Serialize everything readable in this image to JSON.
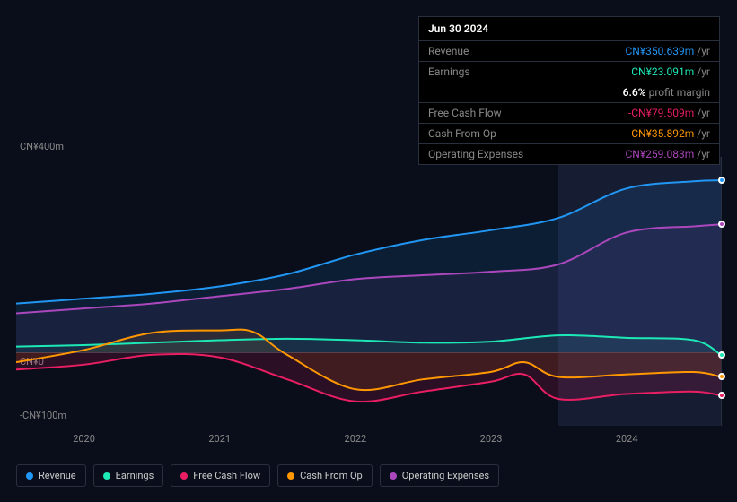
{
  "tooltip": {
    "date": "Jun 30 2024",
    "rows": [
      {
        "label": "Revenue",
        "value": "CN¥350.639m",
        "unit": "/yr",
        "color": "#2196f3"
      },
      {
        "label": "Earnings",
        "value": "CN¥23.091m",
        "unit": "/yr",
        "color": "#1de9b6"
      },
      {
        "label": "",
        "value": "",
        "unit": "",
        "margin_pct": "6.6%",
        "margin_text": "profit margin"
      },
      {
        "label": "Free Cash Flow",
        "value": "-CN¥79.509m",
        "unit": "/yr",
        "color": "#e91e63"
      },
      {
        "label": "Cash From Op",
        "value": "-CN¥35.892m",
        "unit": "/yr",
        "color": "#ff9800"
      },
      {
        "label": "Operating Expenses",
        "value": "CN¥259.083m",
        "unit": "/yr",
        "color": "#ab47bc"
      }
    ]
  },
  "chart": {
    "type": "line",
    "x_axis": {
      "labels": [
        "2020",
        "2021",
        "2022",
        "2023",
        "2024"
      ],
      "min": 2019.5,
      "max": 2024.7,
      "future_start": 2023.5
    },
    "y_axis": {
      "ticks": [
        {
          "value": 400,
          "label": "CN¥400m"
        },
        {
          "value": 0,
          "label": "CN¥0"
        },
        {
          "value": -100,
          "label": "-CN¥100m"
        }
      ],
      "min": -150,
      "max": 400
    },
    "background": "#0a0e1a",
    "grid_color": "#3a3f4e",
    "future_bg": "rgba(60,70,120,0.25)",
    "series": [
      {
        "name": "Revenue",
        "color": "#2196f3",
        "fill": "rgba(33,150,243,0.12)",
        "width": 2,
        "points": [
          [
            2019.5,
            100
          ],
          [
            2020,
            110
          ],
          [
            2020.5,
            120
          ],
          [
            2021,
            135
          ],
          [
            2021.5,
            160
          ],
          [
            2022,
            200
          ],
          [
            2022.5,
            230
          ],
          [
            2023,
            250
          ],
          [
            2023.5,
            275
          ],
          [
            2024,
            335
          ],
          [
            2024.5,
            350
          ],
          [
            2024.7,
            352
          ]
        ]
      },
      {
        "name": "Earnings",
        "color": "#1de9b6",
        "fill": "rgba(29,233,182,0.08)",
        "width": 2,
        "points": [
          [
            2019.5,
            12
          ],
          [
            2020,
            15
          ],
          [
            2020.5,
            20
          ],
          [
            2021,
            25
          ],
          [
            2021.5,
            28
          ],
          [
            2022,
            25
          ],
          [
            2022.5,
            20
          ],
          [
            2023,
            22
          ],
          [
            2023.5,
            35
          ],
          [
            2024,
            30
          ],
          [
            2024.5,
            25
          ],
          [
            2024.7,
            -5
          ]
        ]
      },
      {
        "name": "Free Cash Flow",
        "color": "#e91e63",
        "fill": "rgba(233,30,99,0.15)",
        "width": 2,
        "points": [
          [
            2019.5,
            -35
          ],
          [
            2020,
            -25
          ],
          [
            2020.5,
            -5
          ],
          [
            2021,
            -10
          ],
          [
            2021.5,
            -55
          ],
          [
            2022,
            -100
          ],
          [
            2022.5,
            -80
          ],
          [
            2023,
            -60
          ],
          [
            2023.25,
            -45
          ],
          [
            2023.5,
            -95
          ],
          [
            2024,
            -85
          ],
          [
            2024.5,
            -80
          ],
          [
            2024.7,
            -88
          ]
        ]
      },
      {
        "name": "Cash From Op",
        "color": "#ff9800",
        "fill": "rgba(255,152,0,0.1)",
        "width": 2,
        "points": [
          [
            2019.5,
            -20
          ],
          [
            2020,
            5
          ],
          [
            2020.5,
            40
          ],
          [
            2021,
            45
          ],
          [
            2021.25,
            42
          ],
          [
            2021.5,
            -5
          ],
          [
            2022,
            -75
          ],
          [
            2022.5,
            -55
          ],
          [
            2023,
            -40
          ],
          [
            2023.25,
            -20
          ],
          [
            2023.5,
            -50
          ],
          [
            2024,
            -45
          ],
          [
            2024.5,
            -40
          ],
          [
            2024.7,
            -50
          ]
        ]
      },
      {
        "name": "Operating Expenses",
        "color": "#ab47bc",
        "fill": "rgba(171,71,188,0.08)",
        "width": 2,
        "points": [
          [
            2019.5,
            80
          ],
          [
            2020,
            90
          ],
          [
            2020.5,
            100
          ],
          [
            2021,
            115
          ],
          [
            2021.5,
            130
          ],
          [
            2022,
            150
          ],
          [
            2022.5,
            158
          ],
          [
            2023,
            165
          ],
          [
            2023.5,
            180
          ],
          [
            2024,
            245
          ],
          [
            2024.5,
            258
          ],
          [
            2024.7,
            262
          ]
        ]
      }
    ]
  },
  "legend": [
    {
      "label": "Revenue",
      "color": "#2196f3"
    },
    {
      "label": "Earnings",
      "color": "#1de9b6"
    },
    {
      "label": "Free Cash Flow",
      "color": "#e91e63"
    },
    {
      "label": "Cash From Op",
      "color": "#ff9800"
    },
    {
      "label": "Operating Expenses",
      "color": "#ab47bc"
    }
  ]
}
